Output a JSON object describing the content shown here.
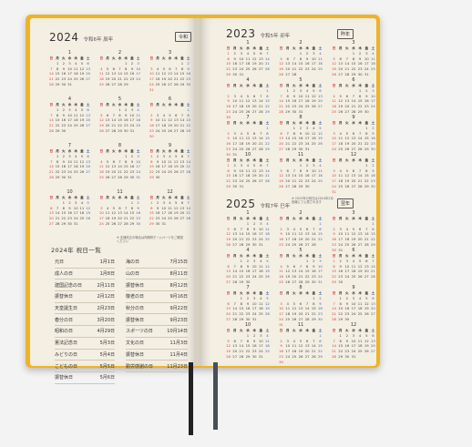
{
  "weekdays": [
    "日",
    "月",
    "火",
    "水",
    "木",
    "金",
    "土"
  ],
  "left": {
    "year": "2024",
    "era": "令和6年 辰年",
    "badge": "令和",
    "note": "※ 法律改正の場合は内閣府ホームページをご確認ください",
    "holidays_title": "2024年 祝日一覧",
    "holidays": [
      {
        "name": "元日",
        "date": "1月1日"
      },
      {
        "name": "成人の日",
        "date": "1月8日"
      },
      {
        "name": "建国記念の日",
        "date": "2月11日"
      },
      {
        "name": "振替休日",
        "date": "2月12日"
      },
      {
        "name": "天皇誕生日",
        "date": "2月23日"
      },
      {
        "name": "春分の日",
        "date": "3月20日"
      },
      {
        "name": "昭和の日",
        "date": "4月29日"
      },
      {
        "name": "憲法記念日",
        "date": "5月3日"
      },
      {
        "name": "みどりの日",
        "date": "5月4日"
      },
      {
        "name": "こどもの日",
        "date": "5月5日"
      },
      {
        "name": "振替休日",
        "date": "5月6日"
      },
      {
        "name": "海の日",
        "date": "7月15日"
      },
      {
        "name": "山の日",
        "date": "8月11日"
      },
      {
        "name": "振替休日",
        "date": "8月12日"
      },
      {
        "name": "敬老の日",
        "date": "9月16日"
      },
      {
        "name": "秋分の日",
        "date": "9月22日"
      },
      {
        "name": "振替休日",
        "date": "9月23日"
      },
      {
        "name": "スポーツの日",
        "date": "10月14日"
      },
      {
        "name": "文化の日",
        "date": "11月3日"
      },
      {
        "name": "振替休日",
        "date": "11月4日"
      },
      {
        "name": "勤労感謝の日",
        "date": "11月23日"
      }
    ],
    "months": [
      {
        "label": "1",
        "start": 1,
        "days": 31
      },
      {
        "label": "2",
        "start": 4,
        "days": 29
      },
      {
        "label": "3",
        "start": 5,
        "days": 31
      },
      {
        "label": "4",
        "start": 1,
        "days": 30
      },
      {
        "label": "5",
        "start": 3,
        "days": 31
      },
      {
        "label": "6",
        "start": 6,
        "days": 30
      },
      {
        "label": "7",
        "start": 1,
        "days": 31
      },
      {
        "label": "8",
        "start": 4,
        "days": 31
      },
      {
        "label": "9",
        "start": 0,
        "days": 30
      },
      {
        "label": "10",
        "start": 2,
        "days": 31
      },
      {
        "label": "11",
        "start": 5,
        "days": 30
      },
      {
        "label": "12",
        "start": 0,
        "days": 31
      }
    ]
  },
  "right_top": {
    "year": "2023",
    "era": "令和5年 卯年",
    "badge": "昨年",
    "months": [
      {
        "label": "1",
        "start": 0,
        "days": 31
      },
      {
        "label": "2",
        "start": 3,
        "days": 28
      },
      {
        "label": "3",
        "start": 3,
        "days": 31
      },
      {
        "label": "4",
        "start": 6,
        "days": 30
      },
      {
        "label": "5",
        "start": 1,
        "days": 31
      },
      {
        "label": "6",
        "start": 4,
        "days": 30
      },
      {
        "label": "7",
        "start": 6,
        "days": 31
      },
      {
        "label": "8",
        "start": 2,
        "days": 31
      },
      {
        "label": "9",
        "start": 5,
        "days": 30
      },
      {
        "label": "10",
        "start": 0,
        "days": 31
      },
      {
        "label": "11",
        "start": 3,
        "days": 30
      },
      {
        "label": "12",
        "start": 5,
        "days": 31
      }
    ]
  },
  "right_bottom": {
    "year": "2025",
    "era": "令和7年 巳年",
    "badge": "翌年",
    "note": "※ 2025年の祝日は2024年2月 官報にて公表されます",
    "months": [
      {
        "label": "1",
        "start": 3,
        "days": 31
      },
      {
        "label": "2",
        "start": 6,
        "days": 28
      },
      {
        "label": "3",
        "start": 6,
        "days": 31
      },
      {
        "label": "4",
        "start": 2,
        "days": 30
      },
      {
        "label": "5",
        "start": 4,
        "days": 31
      },
      {
        "label": "6",
        "start": 0,
        "days": 30
      },
      {
        "label": "7",
        "start": 2,
        "days": 31
      },
      {
        "label": "8",
        "start": 5,
        "days": 31
      },
      {
        "label": "9",
        "start": 1,
        "days": 30
      },
      {
        "label": "10",
        "start": 3,
        "days": 31
      },
      {
        "label": "11",
        "start": 6,
        "days": 30
      },
      {
        "label": "12",
        "start": 1,
        "days": 31
      }
    ]
  }
}
